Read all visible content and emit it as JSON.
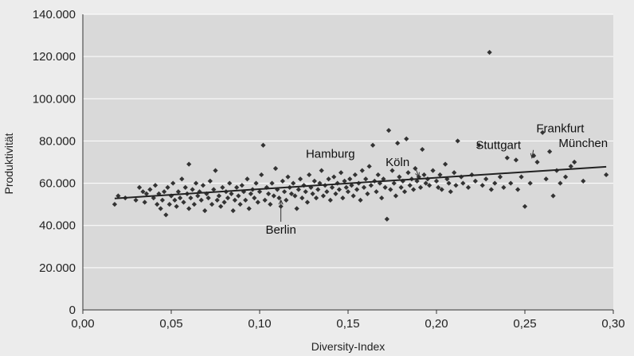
{
  "chart_data": {
    "type": "scatter",
    "xlabel": "Diversity-Index",
    "ylabel": "Produktivität",
    "xlim": [
      0,
      0.3
    ],
    "ylim": [
      0,
      140000
    ],
    "xticks": [
      {
        "value": 0.0,
        "label": "0,00"
      },
      {
        "value": 0.05,
        "label": "0,05"
      },
      {
        "value": 0.1,
        "label": "0,10"
      },
      {
        "value": 0.15,
        "label": "0,15"
      },
      {
        "value": 0.2,
        "label": "0,20"
      },
      {
        "value": 0.25,
        "label": "0,25"
      },
      {
        "value": 0.3,
        "label": "0,30"
      }
    ],
    "yticks": [
      {
        "value": 0,
        "label": "0"
      },
      {
        "value": 20000,
        "label": "20.000"
      },
      {
        "value": 40000,
        "label": "40.000"
      },
      {
        "value": 60000,
        "label": "60.000"
      },
      {
        "value": 80000,
        "label": "80.000"
      },
      {
        "value": 100000,
        "label": "100.000"
      },
      {
        "value": 120000,
        "label": "120.000"
      },
      {
        "value": 140000,
        "label": "140.000"
      }
    ],
    "grid": true,
    "trendline": {
      "x": [
        0.018,
        0.296
      ],
      "y": [
        52800,
        67800
      ]
    },
    "annotations": [
      {
        "name": "berlin",
        "text": "Berlin",
        "point": [
          0.112,
          52000
        ],
        "label_at": [
          0.112,
          38000
        ]
      },
      {
        "name": "hamburg",
        "text": "Hamburg",
        "point": [
          0.14,
          80000
        ],
        "label_at": [
          0.14,
          74000
        ]
      },
      {
        "name": "koeln",
        "text": "Köln",
        "point": [
          0.19,
          63000
        ],
        "label_at": [
          0.178,
          70000
        ]
      },
      {
        "name": "stuttgart",
        "text": "Stuttgart",
        "point": [
          0.254,
          72000
        ],
        "label_at": [
          0.235,
          78000
        ]
      },
      {
        "name": "frankfurt",
        "text": "Frankfurt",
        "point": [
          0.26,
          83500
        ],
        "label_at": [
          0.27,
          86000
        ]
      },
      {
        "name": "muenchen",
        "text": "München",
        "point": [
          0.264,
          76000
        ],
        "label_at": [
          0.283,
          79000
        ]
      }
    ],
    "points": [
      [
        0.018,
        50000
      ],
      [
        0.02,
        54000
      ],
      [
        0.024,
        53000
      ],
      [
        0.03,
        52000
      ],
      [
        0.032,
        58000
      ],
      [
        0.034,
        56000
      ],
      [
        0.035,
        51000
      ],
      [
        0.036,
        55000
      ],
      [
        0.038,
        57000
      ],
      [
        0.04,
        53000
      ],
      [
        0.041,
        59000
      ],
      [
        0.042,
        50000
      ],
      [
        0.043,
        55000
      ],
      [
        0.044,
        48000
      ],
      [
        0.045,
        52000
      ],
      [
        0.046,
        56000
      ],
      [
        0.047,
        45000
      ],
      [
        0.048,
        58000
      ],
      [
        0.049,
        50000
      ],
      [
        0.05,
        54000
      ],
      [
        0.051,
        60000
      ],
      [
        0.052,
        52000
      ],
      [
        0.053,
        49000
      ],
      [
        0.054,
        56000
      ],
      [
        0.055,
        53000
      ],
      [
        0.056,
        62000
      ],
      [
        0.057,
        51000
      ],
      [
        0.058,
        58000
      ],
      [
        0.059,
        55000
      ],
      [
        0.06,
        69000
      ],
      [
        0.06,
        48000
      ],
      [
        0.061,
        53000
      ],
      [
        0.062,
        57000
      ],
      [
        0.063,
        50000
      ],
      [
        0.064,
        60000
      ],
      [
        0.065,
        54000
      ],
      [
        0.066,
        56000
      ],
      [
        0.067,
        52000
      ],
      [
        0.068,
        59000
      ],
      [
        0.069,
        47000
      ],
      [
        0.07,
        55000
      ],
      [
        0.071,
        53000
      ],
      [
        0.072,
        61000
      ],
      [
        0.073,
        50000
      ],
      [
        0.074,
        57000
      ],
      [
        0.075,
        66000
      ],
      [
        0.076,
        52000
      ],
      [
        0.077,
        54000
      ],
      [
        0.078,
        49000
      ],
      [
        0.079,
        58000
      ],
      [
        0.08,
        51000
      ],
      [
        0.081,
        56000
      ],
      [
        0.082,
        53000
      ],
      [
        0.083,
        60000
      ],
      [
        0.084,
        55000
      ],
      [
        0.085,
        47000
      ],
      [
        0.086,
        52000
      ],
      [
        0.087,
        58000
      ],
      [
        0.088,
        54000
      ],
      [
        0.089,
        50000
      ],
      [
        0.09,
        59000
      ],
      [
        0.091,
        56000
      ],
      [
        0.092,
        52000
      ],
      [
        0.093,
        62000
      ],
      [
        0.094,
        48000
      ],
      [
        0.095,
        55000
      ],
      [
        0.096,
        57000
      ],
      [
        0.097,
        53000
      ],
      [
        0.098,
        60000
      ],
      [
        0.099,
        51000
      ],
      [
        0.1,
        56000
      ],
      [
        0.101,
        64000
      ],
      [
        0.102,
        78000
      ],
      [
        0.103,
        52000
      ],
      [
        0.104,
        58000
      ],
      [
        0.105,
        55000
      ],
      [
        0.106,
        50000
      ],
      [
        0.107,
        60000
      ],
      [
        0.108,
        54000
      ],
      [
        0.109,
        67000
      ],
      [
        0.11,
        57000
      ],
      [
        0.111,
        53000
      ],
      [
        0.112,
        49000
      ],
      [
        0.113,
        61000
      ],
      [
        0.114,
        56000
      ],
      [
        0.115,
        52000
      ],
      [
        0.116,
        63000
      ],
      [
        0.117,
        58000
      ],
      [
        0.118,
        55000
      ],
      [
        0.119,
        60000
      ],
      [
        0.12,
        54000
      ],
      [
        0.121,
        48000
      ],
      [
        0.122,
        57000
      ],
      [
        0.123,
        62000
      ],
      [
        0.124,
        53000
      ],
      [
        0.125,
        59000
      ],
      [
        0.126,
        56000
      ],
      [
        0.127,
        51000
      ],
      [
        0.128,
        64000
      ],
      [
        0.129,
        58000
      ],
      [
        0.13,
        55000
      ],
      [
        0.131,
        61000
      ],
      [
        0.132,
        53000
      ],
      [
        0.133,
        57000
      ],
      [
        0.134,
        60000
      ],
      [
        0.135,
        66000
      ],
      [
        0.136,
        54000
      ],
      [
        0.137,
        59000
      ],
      [
        0.138,
        56000
      ],
      [
        0.139,
        62000
      ],
      [
        0.14,
        52000
      ],
      [
        0.141,
        58000
      ],
      [
        0.142,
        63000
      ],
      [
        0.143,
        55000
      ],
      [
        0.144,
        60000
      ],
      [
        0.145,
        57000
      ],
      [
        0.146,
        65000
      ],
      [
        0.147,
        53000
      ],
      [
        0.148,
        61000
      ],
      [
        0.149,
        58000
      ],
      [
        0.15,
        56000
      ],
      [
        0.151,
        62000
      ],
      [
        0.152,
        59000
      ],
      [
        0.153,
        54000
      ],
      [
        0.154,
        64000
      ],
      [
        0.155,
        57000
      ],
      [
        0.156,
        60000
      ],
      [
        0.157,
        52000
      ],
      [
        0.158,
        66000
      ],
      [
        0.159,
        58000
      ],
      [
        0.16,
        62000
      ],
      [
        0.161,
        55000
      ],
      [
        0.162,
        68000
      ],
      [
        0.163,
        59000
      ],
      [
        0.164,
        78000
      ],
      [
        0.165,
        61000
      ],
      [
        0.166,
        56000
      ],
      [
        0.167,
        64000
      ],
      [
        0.168,
        60000
      ],
      [
        0.169,
        53000
      ],
      [
        0.17,
        62000
      ],
      [
        0.171,
        58000
      ],
      [
        0.172,
        43000
      ],
      [
        0.173,
        85000
      ],
      [
        0.174,
        57000
      ],
      [
        0.175,
        66000
      ],
      [
        0.176,
        60000
      ],
      [
        0.177,
        54000
      ],
      [
        0.178,
        79000
      ],
      [
        0.179,
        63000
      ],
      [
        0.18,
        58000
      ],
      [
        0.181,
        61000
      ],
      [
        0.182,
        56000
      ],
      [
        0.183,
        81000
      ],
      [
        0.184,
        65000
      ],
      [
        0.185,
        59000
      ],
      [
        0.186,
        62000
      ],
      [
        0.187,
        57000
      ],
      [
        0.188,
        67000
      ],
      [
        0.189,
        61000
      ],
      [
        0.19,
        63000
      ],
      [
        0.191,
        58000
      ],
      [
        0.192,
        76000
      ],
      [
        0.193,
        64000
      ],
      [
        0.194,
        60000
      ],
      [
        0.195,
        62000
      ],
      [
        0.196,
        59000
      ],
      [
        0.198,
        66000
      ],
      [
        0.2,
        61000
      ],
      [
        0.201,
        58000
      ],
      [
        0.202,
        64000
      ],
      [
        0.203,
        57000
      ],
      [
        0.205,
        69000
      ],
      [
        0.206,
        62000
      ],
      [
        0.207,
        60000
      ],
      [
        0.208,
        56000
      ],
      [
        0.21,
        65000
      ],
      [
        0.211,
        59000
      ],
      [
        0.212,
        80000
      ],
      [
        0.214,
        63000
      ],
      [
        0.215,
        60000
      ],
      [
        0.218,
        58000
      ],
      [
        0.22,
        64000
      ],
      [
        0.222,
        61000
      ],
      [
        0.224,
        78000
      ],
      [
        0.226,
        59000
      ],
      [
        0.228,
        62000
      ],
      [
        0.23,
        122000
      ],
      [
        0.231,
        57000
      ],
      [
        0.233,
        60000
      ],
      [
        0.236,
        63000
      ],
      [
        0.238,
        58000
      ],
      [
        0.24,
        72000
      ],
      [
        0.242,
        60000
      ],
      [
        0.245,
        71000
      ],
      [
        0.246,
        57000
      ],
      [
        0.248,
        63000
      ],
      [
        0.25,
        49000
      ],
      [
        0.253,
        60000
      ],
      [
        0.255,
        73000
      ],
      [
        0.257,
        70000
      ],
      [
        0.26,
        84000
      ],
      [
        0.262,
        62000
      ],
      [
        0.264,
        75000
      ],
      [
        0.266,
        54000
      ],
      [
        0.268,
        66000
      ],
      [
        0.27,
        60000
      ],
      [
        0.273,
        63000
      ],
      [
        0.276,
        68000
      ],
      [
        0.278,
        70000
      ],
      [
        0.283,
        61000
      ],
      [
        0.296,
        64000
      ]
    ]
  }
}
